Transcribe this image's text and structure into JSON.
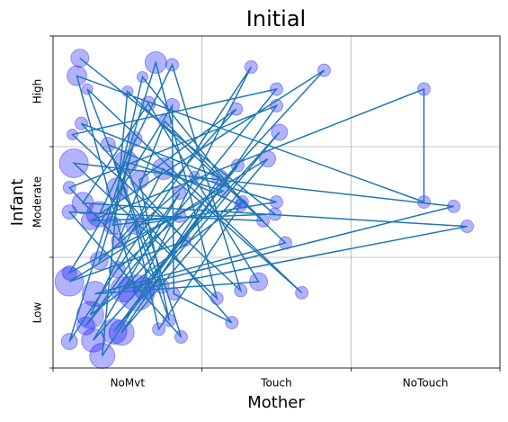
{
  "chart_data": {
    "type": "bubble-path",
    "title": "Initial",
    "x_label": "Mother",
    "y_label": "Infant",
    "xlim": [
      0,
      3
    ],
    "ylim": [
      0,
      3
    ],
    "xticks": [
      {
        "value": 0.5,
        "label": "NoMvt"
      },
      {
        "value": 1.5,
        "label": "Touch"
      },
      {
        "value": 2.5,
        "label": "NoTouch"
      }
    ],
    "yticks": [
      {
        "value": 0.5,
        "label": "Low"
      },
      {
        "value": 1.5,
        "label": "Moderate"
      },
      {
        "value": 2.5,
        "label": "High"
      }
    ],
    "x_gridlines": [
      0,
      1,
      2,
      3
    ],
    "y_gridlines": [
      0,
      1,
      2,
      3
    ],
    "grid": true,
    "line_color": "#1f77b4",
    "marker_color": "#0000ff",
    "x": [
      0.18,
      1.49,
      0.25,
      2.49,
      2.49,
      0.16,
      0.56,
      1.33,
      0.11,
      0.69,
      1.1,
      0.14,
      2.69,
      0.47,
      1.82,
      0.31,
      0.8,
      1.26,
      0.13,
      1.5,
      0.22,
      0.85,
      0.27,
      1.52,
      0.41,
      1.24,
      0.61,
      2.78,
      0.2,
      0.64,
      1.38,
      0.28,
      1.56,
      0.5,
      0.33,
      1.12,
      0.19,
      0.89,
      0.11,
      1.44,
      0.46,
      1.5,
      0.11,
      0.73,
      0.23,
      1.67,
      0.74,
      0.25,
      1.27,
      0.6,
      0.43,
      1.2,
      0.81,
      0.8,
      0.11,
      1.14,
      0.49,
      0.86,
      0.11,
      1.41,
      0.75,
      0.44,
      1.23,
      0.58,
      0.78,
      0.37,
      1.26,
      0.71,
      0.55,
      1.5,
      0.95,
      0.31,
      0.55,
      0.4,
      0.85,
      0.43
    ],
    "values": [
      2.8,
      1.39,
      1.33,
      2.52,
      1.5,
      2.64,
      0.68,
      2.72,
      0.24,
      2.76,
      0.63,
      1.85,
      1.46,
      0.71,
      2.69,
      1.39,
      2.74,
      0.7,
      2.11,
      2.52,
      0.38,
      1.58,
      0.25,
      2.13,
      0.33,
      1.83,
      0.72,
      1.28,
      1.49,
      2.39,
      0.78,
      0.67,
      1.13,
      2.5,
      0.11,
      1.72,
      2.21,
      1.15,
      0.78,
      1.89,
      0.32,
      2.37,
      1.63,
      0.74,
      2.52,
      0.68,
      1.8,
      0.48,
      1.5,
      2.63,
      1.62,
      0.41,
      0.67,
      2.37,
      0.86,
      1.6,
      1.86,
      0.28,
      1.41,
      1.33,
      2.23,
      1.15,
      2.34,
      1.7,
      0.43,
      2.02,
      1.47,
      0.35,
      1.29,
      1.5,
      1.73,
      0.97,
      2.07,
      1.29,
      1.37,
      0.89
    ],
    "sizes": [
      10,
      7,
      10,
      7,
      7,
      11,
      20,
      7,
      9,
      12,
      7,
      16,
      7,
      14,
      7,
      14,
      7,
      7,
      6,
      7,
      10,
      7,
      13,
      9,
      14,
      7,
      12,
      7,
      12,
      8,
      10,
      14,
      7,
      6,
      14,
      9,
      7,
      6,
      16,
      9,
      14,
      7,
      7,
      8,
      6,
      7,
      12,
      15,
      7,
      6,
      12,
      7,
      7,
      8,
      8,
      7,
      13,
      7,
      8,
      7,
      7,
      8,
      7,
      10,
      7,
      8,
      7,
      7,
      10,
      7,
      6,
      10,
      8,
      10,
      7,
      9
    ]
  }
}
